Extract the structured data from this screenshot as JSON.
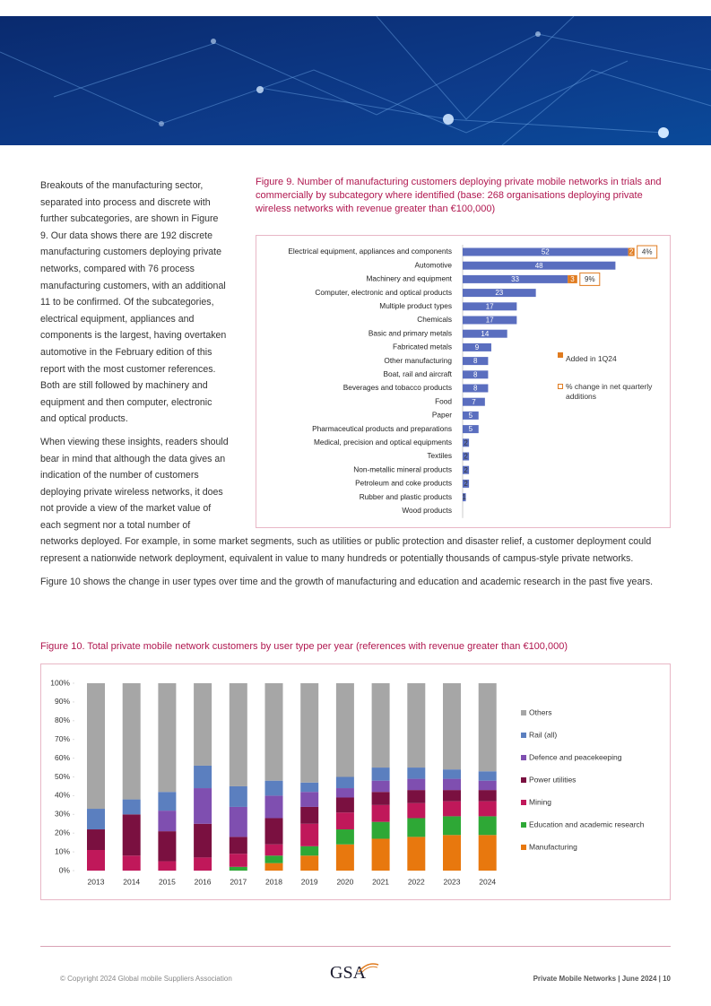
{
  "body": {
    "paragraphs": [
      "Breakouts of the manufacturing sector, separated into process and discrete with further subcategories, are shown in Figure 9. Our data shows there are 192 discrete manufacturing customers deploying private networks, compared with 76 process manufacturing customers, with an additional 11 to be confirmed. Of the subcategories, electrical equipment, appliances and components is the largest, having overtaken automotive in the February edition of this report with the most customer references. Both are still followed by machinery and equipment and then computer, electronic and optical products.",
      "When viewing these insights, readers should bear in mind that although the data gives an indication of the number of customers deploying private wireless networks, it does not provide a view of the market value of each segment nor a total number of networks deployed. For example, in some market segments, such as utilities or public protection and disaster relief, a customer deployment could represent a nationwide network deployment, equivalent in value to many hundreds or potentially thousands of campus-style private networks.",
      "Figure 10 shows the change in user types over time and the growth of manufacturing and education and academic research in the past five years."
    ]
  },
  "chart_data": [
    {
      "type": "hbar",
      "title": "Figure 9. Number of manufacturing customers deploying private mobile networks in trials and commercially by subcategory where identified (base: 268 organisations deploying private wireless networks with revenue greater than €100,000)",
      "categories": [
        "Electrical equipment, appliances and components",
        "Automotive",
        "Machinery and equipment",
        "Computer, electronic and optical products",
        "Multiple product types",
        "Chemicals",
        "Basic and primary metals",
        "Fabricated metals",
        "Other manufacturing",
        "Boat, rail and aircraft",
        "Beverages and tobacco products",
        "Food",
        "Paper",
        "Pharmaceutical products and preparations",
        "Medical, precision and optical equipments",
        "Textiles",
        "Non-metallic mineral products",
        "Petroleum and coke products",
        "Rubber and plastic products",
        "Wood products"
      ],
      "series": [
        {
          "color": "#5a6ebf",
          "values": [
            52,
            48,
            33,
            23,
            17,
            17,
            14,
            9,
            8,
            8,
            8,
            7,
            5,
            5,
            2,
            2,
            2,
            2,
            1,
            null
          ]
        },
        {
          "name": "Added in 1Q24",
          "color": "#e07b1f",
          "values": [
            2,
            null,
            3,
            null,
            null,
            null,
            null,
            null,
            null,
            null,
            null,
            null,
            null,
            null,
            null,
            null,
            null,
            null,
            null,
            null
          ]
        },
        {
          "name": "% change in net quarterly additions",
          "color": "#e07b1f",
          "values": [
            4,
            null,
            9,
            null,
            null,
            null,
            null,
            null,
            null,
            null,
            null,
            null,
            null,
            null,
            null,
            null,
            null,
            null,
            null,
            null
          ],
          "value_labels": [
            "4%",
            null,
            "9%",
            null,
            null,
            null,
            null,
            null,
            null,
            null,
            null,
            null,
            null,
            null,
            null,
            null,
            null,
            null,
            null,
            null
          ]
        }
      ]
    },
    {
      "type": "stacked_bar",
      "title": "Figure 10. Total private mobile network customers by user type per year (references with revenue greater than €100,000)",
      "categories": [
        "2013",
        "2014",
        "2015",
        "2016",
        "2017",
        "2018",
        "2019",
        "2020",
        "2021",
        "2022",
        "2023",
        "2024"
      ],
      "ylim": [
        0,
        100
      ],
      "yticks": [
        {
          "value": 0,
          "label": "0%"
        },
        {
          "value": 10,
          "label": "10%"
        },
        {
          "value": 20,
          "label": "20%"
        },
        {
          "value": 30,
          "label": "30%"
        },
        {
          "value": 40,
          "label": "40%"
        },
        {
          "value": 50,
          "label": "50%"
        },
        {
          "value": 60,
          "label": "60%"
        },
        {
          "value": 70,
          "label": "70%"
        },
        {
          "value": 80,
          "label": "80%"
        },
        {
          "value": 90,
          "label": "90%"
        },
        {
          "value": 100,
          "label": "100%"
        }
      ],
      "series": [
        {
          "name": "Manufacturing",
          "color": "#e8780e",
          "values": [
            0,
            0,
            0,
            0,
            0,
            4,
            8,
            14,
            17,
            18,
            19,
            19
          ]
        },
        {
          "name": "Education and academic research",
          "color": "#2ea836",
          "values": [
            0,
            0,
            0,
            0,
            2,
            4,
            5,
            8,
            9,
            10,
            10,
            10
          ]
        },
        {
          "name": "Mining",
          "color": "#c0185a",
          "values": [
            11,
            8,
            5,
            7,
            7,
            6,
            12,
            9,
            9,
            8,
            8,
            8
          ]
        },
        {
          "name": "Power utilities",
          "color": "#7a1040",
          "values": [
            11,
            22,
            16,
            18,
            9,
            14,
            9,
            8,
            7,
            7,
            6,
            6
          ]
        },
        {
          "name": "Defence and peacekeeping",
          "color": "#7f4fb0",
          "values": [
            0,
            0,
            11,
            19,
            16,
            12,
            8,
            5,
            6,
            6,
            6,
            5
          ]
        },
        {
          "name": "Rail (all)",
          "color": "#5b7fbf",
          "values": [
            11,
            8,
            10,
            12,
            11,
            8,
            5,
            6,
            7,
            6,
            5,
            5
          ]
        },
        {
          "name": "Others",
          "color": "#a6a6a6",
          "values": [
            67,
            62,
            58,
            44,
            55,
            52,
            53,
            50,
            45,
            45,
            46,
            47
          ]
        }
      ]
    }
  ],
  "footer": {
    "copyright": "© Copyright 2024 Global mobile Suppliers Association",
    "logo": "GSA",
    "page": "Private Mobile Networks | June 2024 | 10"
  }
}
